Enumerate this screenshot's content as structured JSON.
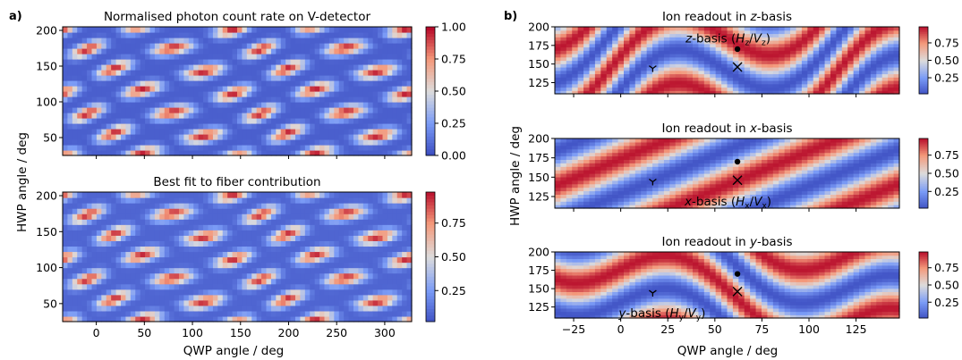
{
  "panel_labels": {
    "a": "a)",
    "b": "b)"
  },
  "shared_axes": {
    "left_xlabel": "QWP angle / deg",
    "left_ylabel": "HWP angle / deg",
    "right_xlabel": "QWP angle / deg",
    "right_ylabel": "HWP angle / deg"
  },
  "colormap": {
    "name": "coolwarm",
    "low": "#3b4cc0",
    "mid": "#dddcdc",
    "high": "#b40426"
  },
  "chart_data": [
    {
      "id": "a_top",
      "type": "heatmap",
      "title": "Normalised photon count rate on V-detector",
      "xlim": [
        -35,
        328
      ],
      "ylim": [
        25,
        205
      ],
      "xticks": [
        0,
        50,
        100,
        150,
        200,
        250,
        300
      ],
      "yticks": [
        50,
        100,
        150,
        200
      ],
      "show_xticklabels": false,
      "grid_cells": [
        72,
        24
      ],
      "colorbar": {
        "min": 0,
        "max": 1,
        "ticks": [
          "0.00",
          "0.25",
          "0.50",
          "0.75",
          "1.00"
        ]
      }
    },
    {
      "id": "a_bottom",
      "type": "heatmap",
      "title": "Best fit to fiber contribution",
      "xlim": [
        -35,
        328
      ],
      "ylim": [
        25,
        205
      ],
      "xticks": [
        0,
        50,
        100,
        150,
        200,
        250,
        300
      ],
      "yticks": [
        50,
        100,
        150,
        200
      ],
      "show_xticklabels": true,
      "grid_cells": [
        72,
        24
      ],
      "colorbar": {
        "min": 0.02,
        "max": 0.98,
        "ticks": [
          "0.25",
          "0.50",
          "0.75"
        ]
      }
    },
    {
      "id": "b_z",
      "type": "heatmap",
      "title": "Ion readout in z-basis",
      "title_parts": [
        "Ion readout in ",
        "z",
        "-basis"
      ],
      "xlim": [
        -35,
        148
      ],
      "ylim": [
        110,
        200
      ],
      "xticks": [
        -25,
        0,
        25,
        50,
        75,
        100,
        125
      ],
      "yticks": [
        125,
        150,
        175,
        200
      ],
      "show_xticklabels": false,
      "grid_cells": [
        60,
        20
      ],
      "colorbar": {
        "min": 0.02,
        "max": 0.98,
        "ticks": [
          "0.25",
          "0.50",
          "0.75"
        ]
      },
      "markers": [
        {
          "symbol": "dot",
          "x": 62,
          "y": 170
        },
        {
          "symbol": "x",
          "x": 62,
          "y": 146
        },
        {
          "symbol": "tri",
          "x": 17,
          "y": 144
        }
      ],
      "annotation": {
        "parts": [
          "z",
          "-basis (",
          "H",
          "z",
          "/",
          "V",
          "z",
          ")"
        ],
        "x": 57,
        "y": 184
      }
    },
    {
      "id": "b_x",
      "type": "heatmap",
      "title": "Ion readout in x-basis",
      "title_parts": [
        "Ion readout in ",
        "x",
        "-basis"
      ],
      "xlim": [
        -35,
        148
      ],
      "ylim": [
        110,
        200
      ],
      "xticks": [
        -25,
        0,
        25,
        50,
        75,
        100,
        125
      ],
      "yticks": [
        125,
        150,
        175,
        200
      ],
      "show_xticklabels": false,
      "grid_cells": [
        60,
        20
      ],
      "colorbar": {
        "min": 0.02,
        "max": 0.98,
        "ticks": [
          "0.25",
          "0.50",
          "0.75"
        ]
      },
      "markers": [
        {
          "symbol": "dot",
          "x": 62,
          "y": 170
        },
        {
          "symbol": "x",
          "x": 62,
          "y": 146
        },
        {
          "symbol": "tri",
          "x": 17,
          "y": 144
        }
      ],
      "annotation": {
        "parts": [
          "x",
          "-basis (",
          "H",
          "x",
          "/",
          "V",
          "x",
          ")"
        ],
        "x": 57,
        "y": 118
      }
    },
    {
      "id": "b_y",
      "type": "heatmap",
      "title": "Ion readout in y-basis",
      "title_parts": [
        "Ion readout in ",
        "y",
        "-basis"
      ],
      "xlim": [
        -35,
        148
      ],
      "ylim": [
        110,
        200
      ],
      "xticks": [
        -25,
        0,
        25,
        50,
        75,
        100,
        125
      ],
      "yticks": [
        125,
        150,
        175,
        200
      ],
      "show_xticklabels": true,
      "grid_cells": [
        60,
        20
      ],
      "colorbar": {
        "min": 0.02,
        "max": 0.98,
        "ticks": [
          "0.25",
          "0.50",
          "0.75"
        ]
      },
      "markers": [
        {
          "symbol": "dot",
          "x": 62,
          "y": 170
        },
        {
          "symbol": "x",
          "x": 62,
          "y": 146
        },
        {
          "symbol": "tri",
          "x": 17,
          "y": 144
        }
      ],
      "annotation": {
        "parts": [
          "y",
          "-basis (",
          "H",
          "y",
          "/",
          "V",
          "y",
          ")"
        ],
        "x": 22,
        "y": 116
      }
    }
  ]
}
